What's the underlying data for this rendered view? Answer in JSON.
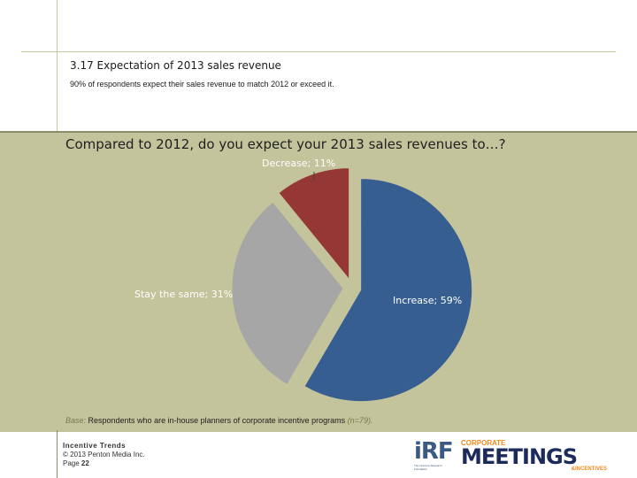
{
  "section": {
    "title": "3.17 Expectation of 2013 sales revenue",
    "subtitle": "90% of respondents expect their sales revenue to match 2012 or exceed it."
  },
  "chart_data": {
    "type": "pie",
    "title": "Compared to 2012, do you expect your 2013 sales revenues to…?",
    "slices": [
      {
        "label": "Increase",
        "value": 59,
        "text": "Increase; 59%",
        "color": "#375e91"
      },
      {
        "label": "Stay the same",
        "value": 31,
        "text": "Stay the same; 31%",
        "color": "#a6a6a6"
      },
      {
        "label": "Decrease",
        "value": 11,
        "text": "Decrease; 11%",
        "color": "#953735"
      }
    ],
    "exploded": true,
    "legend": "none"
  },
  "base": {
    "prefix": "Base:",
    "text": " Respondents who are in-house planners of corporate incentive programs ",
    "n": "(n=79)."
  },
  "footer": {
    "line1": "Incentive Trends",
    "line2": "© 2013 Penton Media Inc.",
    "line3_prefix": "Page ",
    "line3_page": "22"
  },
  "logos": {
    "irf": "iRF",
    "irf_tag": "The Incentive Research Foundation",
    "cmi_top": "CORPORATE",
    "cmi_main": "MEETINGS",
    "cmi_bottom": "&INCENTIVES"
  }
}
